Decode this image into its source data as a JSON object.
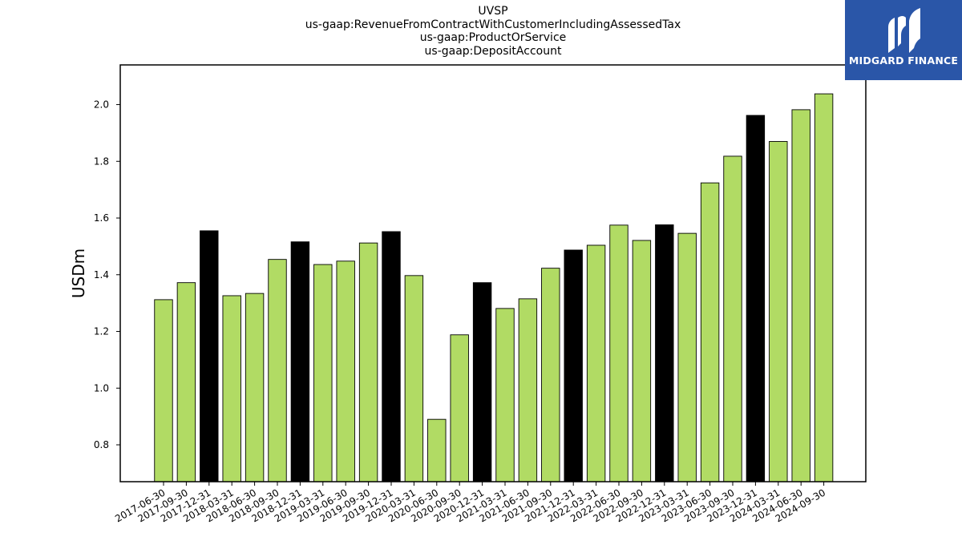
{
  "chart_data": {
    "type": "bar",
    "title_lines": [
      "UVSP",
      "us-gaap:RevenueFromContractWithCustomerIncludingAssessedTax",
      "us-gaap:ProductOrService",
      "us-gaap:DepositAccount"
    ],
    "xlabel": "",
    "ylabel": "USDm",
    "ylim": [
      0.67,
      2.14
    ],
    "yticks": [
      0.8,
      1.0,
      1.2,
      1.4,
      1.6,
      1.8,
      2.0
    ],
    "grid": false,
    "categories": [
      "2017-06-30",
      "2017-09-30",
      "2017-12-31",
      "2018-03-31",
      "2018-06-30",
      "2018-09-30",
      "2018-12-31",
      "2019-03-31",
      "2019-06-30",
      "2019-09-30",
      "2019-12-31",
      "2020-03-31",
      "2020-06-30",
      "2020-09-30",
      "2020-12-31",
      "2021-03-31",
      "2021-06-30",
      "2021-09-30",
      "2021-12-31",
      "2022-03-31",
      "2022-06-30",
      "2022-09-30",
      "2022-12-31",
      "2023-03-31",
      "2023-06-30",
      "2023-09-30",
      "2023-12-31",
      "2024-03-31",
      "2024-06-30",
      "2024-09-30"
    ],
    "values": [
      1.312,
      1.372,
      1.555,
      1.326,
      1.334,
      1.454,
      1.516,
      1.436,
      1.448,
      1.512,
      1.552,
      1.397,
      0.89,
      1.188,
      1.372,
      1.281,
      1.315,
      1.423,
      1.487,
      1.504,
      1.575,
      1.521,
      1.576,
      1.546,
      1.724,
      1.818,
      1.962,
      1.87,
      1.982,
      2.038
    ],
    "bar_colors": [
      "#b1db64",
      "#b1db64",
      "#000000",
      "#b1db64",
      "#b1db64",
      "#b1db64",
      "#000000",
      "#b1db64",
      "#b1db64",
      "#b1db64",
      "#000000",
      "#b1db64",
      "#b1db64",
      "#b1db64",
      "#000000",
      "#b1db64",
      "#b1db64",
      "#b1db64",
      "#000000",
      "#b1db64",
      "#b1db64",
      "#b1db64",
      "#000000",
      "#b1db64",
      "#b1db64",
      "#b1db64",
      "#000000",
      "#b1db64",
      "#b1db64",
      "#b1db64"
    ],
    "colors": {
      "quarter_bar": "#b1db64",
      "year_end_bar": "#000000"
    }
  },
  "logo": {
    "text": "MIDGARD FINANCE",
    "background": "#2a56a8"
  }
}
